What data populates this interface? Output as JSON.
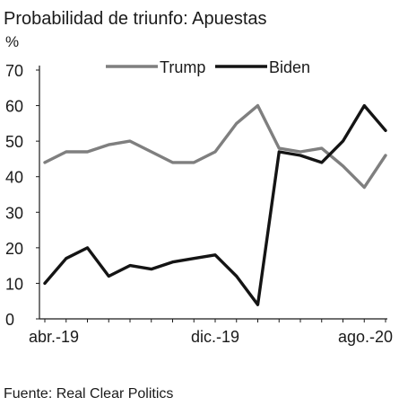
{
  "chart_data": {
    "type": "line",
    "title": "Probabilidad de triunfo: Apuestas",
    "ylabel": "%",
    "xlabel": "",
    "ylim": [
      0,
      70
    ],
    "yticks": [
      0,
      10,
      20,
      30,
      40,
      50,
      60,
      70
    ],
    "xticks": [
      {
        "label": "abr.-19",
        "at": "2019-04"
      },
      {
        "label": "dic.-19",
        "at": "2019-12"
      },
      {
        "label": "ago.-20",
        "at": "2020-08"
      }
    ],
    "x": [
      "2019-04",
      "2019-05",
      "2019-06",
      "2019-07",
      "2019-08",
      "2019-09",
      "2019-10",
      "2019-11",
      "2019-12",
      "2020-01",
      "2020-02",
      "2020-03",
      "2020-04",
      "2020-05",
      "2020-06",
      "2020-07",
      "2020-08"
    ],
    "series": [
      {
        "name": "Trump",
        "color": "#7f7f7f",
        "values": [
          44,
          47,
          47,
          49,
          50,
          47,
          44,
          44,
          47,
          55,
          60,
          48,
          47,
          48,
          43,
          37,
          46
        ]
      },
      {
        "name": "Biden",
        "color": "#141414",
        "values": [
          10,
          17,
          20,
          12,
          15,
          14,
          16,
          17,
          18,
          12,
          4,
          47,
          46,
          44,
          50,
          60,
          53
        ]
      }
    ],
    "legend_position": "top",
    "source": "Fuente: Real Clear Politics",
    "grid": false
  }
}
